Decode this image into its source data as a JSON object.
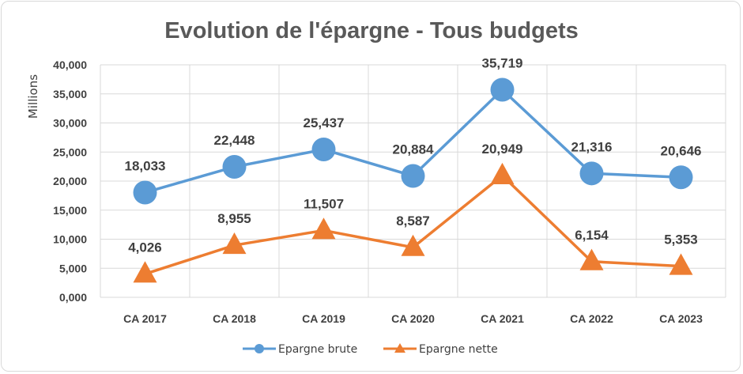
{
  "chart_data": {
    "type": "line",
    "title": "Evolution de l'épargne - Tous budgets",
    "ylabel": "Millions",
    "xlabel": "",
    "ylim": [
      0,
      40000
    ],
    "yticks": [
      "0,000",
      "5,000",
      "10,000",
      "15,000",
      "20,000",
      "25,000",
      "30,000",
      "35,000",
      "40,000"
    ],
    "categories": [
      "CA 2017",
      "CA 2018",
      "CA 2019",
      "CA 2020",
      "CA 2021",
      "CA 2022",
      "CA 2023"
    ],
    "grid": true,
    "legend_position": "bottom",
    "series": [
      {
        "name": "Epargne brute",
        "values": [
          18033,
          22448,
          25437,
          20884,
          35719,
          21316,
          20646
        ],
        "labels": [
          "18,033",
          "22,448",
          "25,437",
          "20,884",
          "35,719",
          "21,316",
          "20,646"
        ],
        "color": "#5b9bd5",
        "marker": "circle"
      },
      {
        "name": "Epargne nette",
        "values": [
          4026,
          8955,
          11507,
          8587,
          20949,
          6154,
          5353
        ],
        "labels": [
          "4,026",
          "8,955",
          "11,507",
          "8,587",
          "20,949",
          "6,154",
          "5,353"
        ],
        "color": "#ed7d31",
        "marker": "triangle"
      }
    ]
  }
}
